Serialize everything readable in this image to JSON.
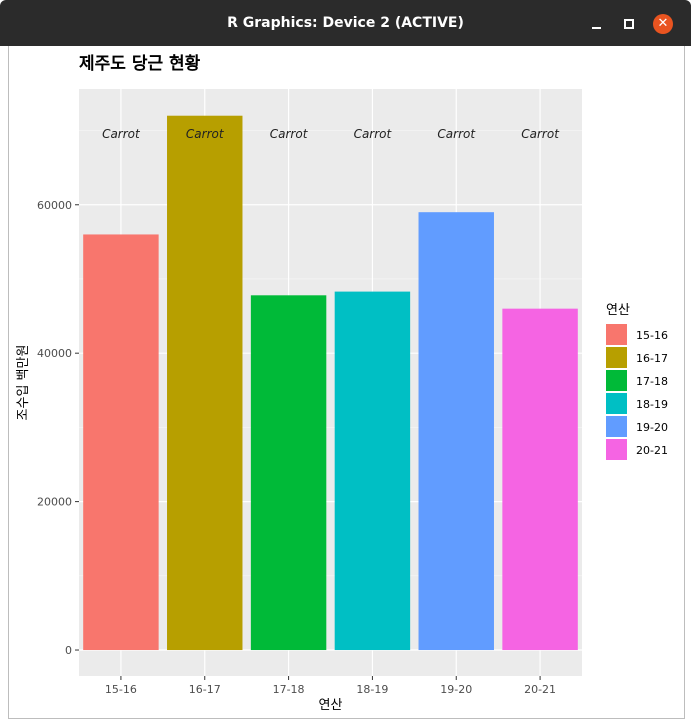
{
  "window": {
    "title": "R Graphics: Device 2 (ACTIVE)",
    "close_glyph": "✕"
  },
  "chart_data": {
    "type": "bar",
    "title": "제주도 당근 현황",
    "xlabel": "연산",
    "ylabel": "조수입 백만원",
    "categories": [
      "15-16",
      "16-17",
      "17-18",
      "18-19",
      "19-20",
      "20-21"
    ],
    "values": [
      56000,
      72000,
      47800,
      48300,
      59000,
      46000
    ],
    "colors": [
      "#F8766D",
      "#B79F00",
      "#00BA38",
      "#00BFC4",
      "#619CFF",
      "#F564E3"
    ],
    "bar_labels": [
      "Carrot",
      "Carrot",
      "Carrot",
      "Carrot",
      "Carrot",
      "Carrot"
    ],
    "yticks": [
      0,
      20000,
      40000,
      60000
    ],
    "ylim": [
      -3500,
      75600
    ],
    "legend": {
      "title": "연산",
      "position": "right"
    },
    "grid": true
  }
}
